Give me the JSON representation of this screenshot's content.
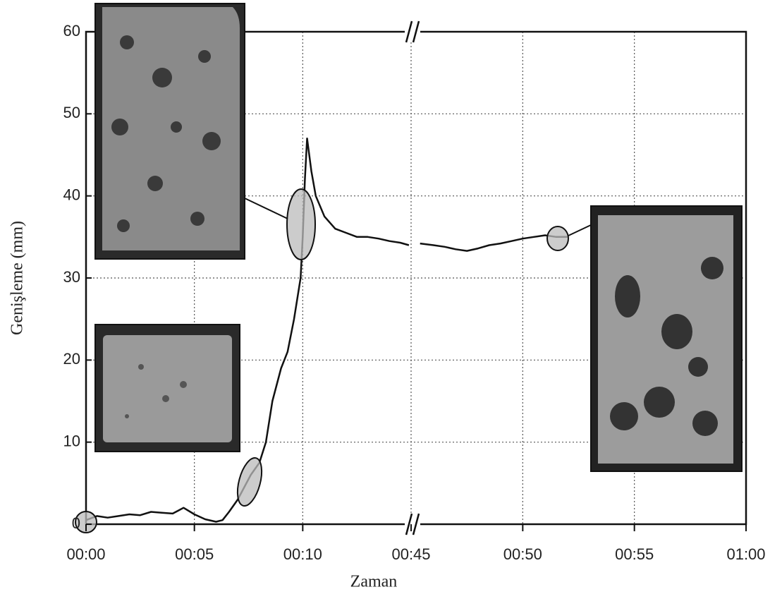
{
  "chart_data": {
    "type": "line",
    "xlabel": "Zaman",
    "ylabel": "Genişleme (mm)",
    "xlim": [
      0,
      60
    ],
    "x_break": [
      15,
      45
    ],
    "xticks": [
      {
        "value": 0,
        "label": "00:00"
      },
      {
        "value": 5,
        "label": "00:05"
      },
      {
        "value": 10,
        "label": "00:10"
      },
      {
        "value": 45,
        "label": "00:45"
      },
      {
        "value": 50,
        "label": "00:50"
      },
      {
        "value": 55,
        "label": "00:55"
      },
      {
        "value": 60,
        "label": "01:00"
      }
    ],
    "ylim": [
      0,
      60
    ],
    "yticks": [
      0,
      10,
      20,
      30,
      40,
      50,
      60
    ],
    "grid": true,
    "series": [
      {
        "color": "#111111",
        "x": [
          0,
          0.5,
          1,
          1.5,
          2,
          2.5,
          3,
          3.5,
          4,
          4.5,
          5,
          5.5,
          6,
          6.3,
          6.6,
          7,
          7.3,
          7.6,
          8,
          8.3,
          8.6,
          9,
          9.3,
          9.6,
          9.9,
          10,
          10.1,
          10.2,
          10.4,
          10.6,
          11,
          11.5,
          12,
          12.5,
          13,
          13.5,
          14,
          14.5,
          14.9,
          30,
          45.4,
          46,
          46.5,
          47,
          47.5,
          48,
          48.5,
          49,
          49.5,
          50,
          50.5,
          51,
          51.5,
          52
        ],
        "values": [
          0.5,
          1,
          0.8,
          1,
          1.2,
          1.1,
          1.5,
          1.4,
          1.3,
          2,
          1.2,
          0.6,
          0.3,
          0.5,
          1.5,
          3,
          4.5,
          6,
          7.5,
          10,
          15,
          19,
          21,
          25,
          30,
          35,
          42,
          47,
          43,
          40,
          37.5,
          36,
          35.5,
          35,
          35,
          34.8,
          34.5,
          34.3,
          34,
          null,
          34.2,
          34,
          33.8,
          33.5,
          33.3,
          33.6,
          34,
          34.2,
          34.5,
          34.8,
          35,
          35.2,
          35,
          35
        ]
      }
    ]
  }
}
